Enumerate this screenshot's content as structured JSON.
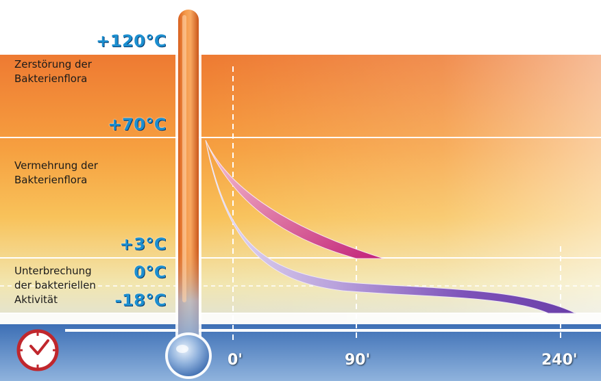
{
  "zones": {
    "destruction": "Zerstörung der\nBakterienflora",
    "multiplication": "Vermehrung der\nBakterienflora",
    "interruption": "Unterbrechung\nder bakteriellen\nAktivität"
  },
  "temperatures": {
    "t120": "+120°C",
    "t70": "+70°C",
    "t3": "+3°C",
    "t0": "0°C",
    "tm18": "-18°C"
  },
  "time_axis": {
    "icon": "clock-icon",
    "ticks": [
      "0'",
      "90'",
      "240'"
    ]
  },
  "colors": {
    "hot": "#ee7a32",
    "warm": "#f8b049",
    "cool": "#f4ecc0",
    "band": "#5a8fc8",
    "thermometer": "#f07e2c",
    "curve_pink": "#cc3d86",
    "curve_purple": "#7a4fb8",
    "temp_label": "#1c8fd0"
  }
}
